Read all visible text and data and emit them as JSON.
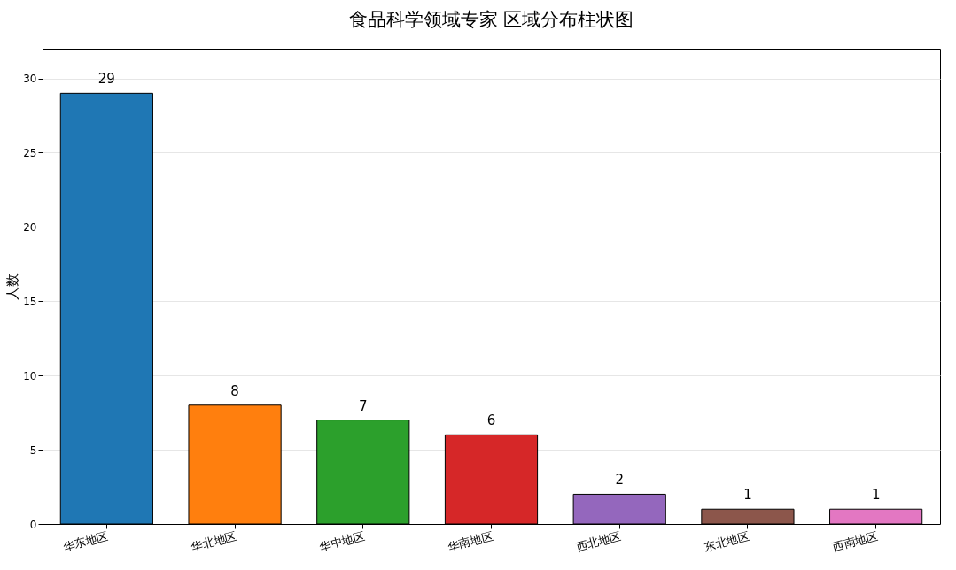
{
  "chart_data": {
    "type": "bar",
    "title": "食品科学领域专家 区域分布柱状图",
    "ylabel": "人数",
    "categories": [
      "华东地区",
      "华北地区",
      "华中地区",
      "华南地区",
      "西北地区",
      "东北地区",
      "西南地区"
    ],
    "values": [
      29,
      8,
      7,
      6,
      2,
      1,
      1
    ],
    "colors": [
      "#1f77b4",
      "#ff7f0e",
      "#2ca02c",
      "#d62728",
      "#9467bd",
      "#8c564b",
      "#e377c2"
    ],
    "ylim": [
      0,
      32
    ],
    "yticks": [
      0,
      5,
      10,
      15,
      20,
      25,
      30
    ],
    "grid": "y",
    "data_labels": true
  }
}
